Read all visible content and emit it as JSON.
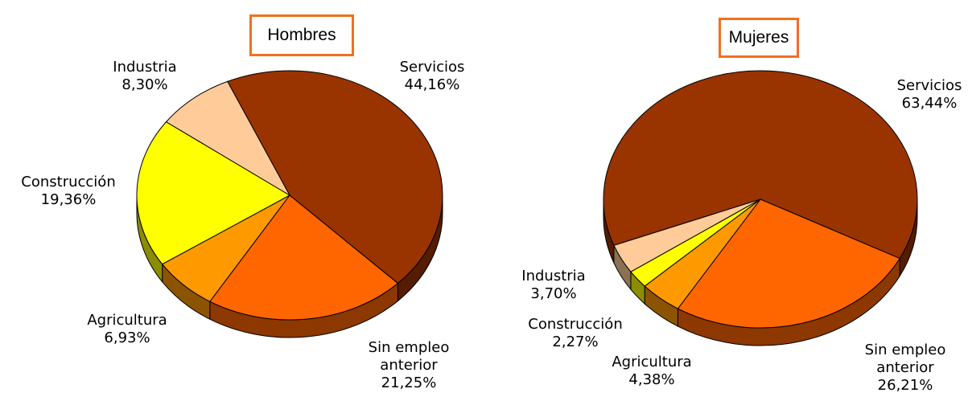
{
  "chart_data": [
    {
      "type": "pie",
      "title": "Hombres",
      "categories": [
        "Servicios",
        "Sin empleo anterior",
        "Agricultura",
        "Construcción",
        "Industria"
      ],
      "values": [
        44.16,
        21.25,
        6.93,
        19.36,
        8.3
      ],
      "value_labels": [
        "44,16%",
        "21,25%",
        "6,93%",
        "19,36%",
        "8,30%"
      ],
      "colors": [
        "#993300",
        "#ff6600",
        "#ff9900",
        "#ffff00",
        "#ffcc99"
      ]
    },
    {
      "type": "pie",
      "title": "Mujeres",
      "categories": [
        "Servicios",
        "Sin empleo anterior",
        "Agricultura",
        "Construcción",
        "Industria"
      ],
      "values": [
        63.44,
        26.21,
        4.38,
        2.27,
        3.7
      ],
      "value_labels": [
        "63,44%",
        "26,21%",
        "4,38%",
        "2,27%",
        "3,70%"
      ],
      "colors": [
        "#993300",
        "#ff6600",
        "#ff9900",
        "#ffff00",
        "#ffcc99"
      ]
    }
  ]
}
